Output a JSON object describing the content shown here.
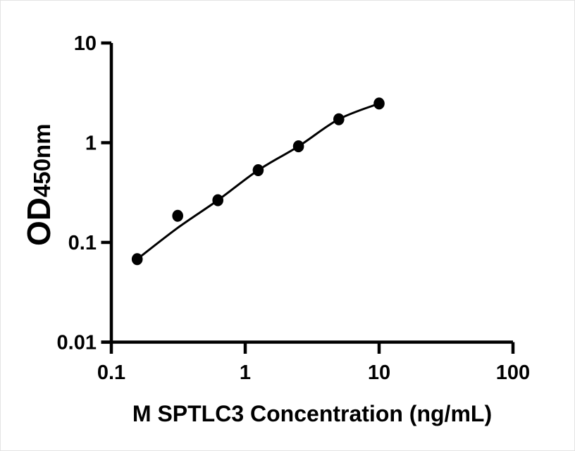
{
  "figure": {
    "background": "#ffffff",
    "ink_color": "#000000"
  },
  "chart_data": {
    "type": "scatter",
    "title": "",
    "xlabel": "M SPTLC3 Concentration (ng/mL)",
    "ylabel": "OD",
    "ylabel_subscript": "450nm",
    "x_scale": "log",
    "y_scale": "log",
    "xlim": [
      0.1,
      100
    ],
    "ylim": [
      0.01,
      10
    ],
    "grid": false,
    "legend": null,
    "x_ticks": [
      {
        "value": 0.1,
        "label": "0.1"
      },
      {
        "value": 1,
        "label": "1"
      },
      {
        "value": 10,
        "label": "10"
      },
      {
        "value": 100,
        "label": "100"
      }
    ],
    "y_ticks": [
      {
        "value": 10,
        "label": "10"
      },
      {
        "value": 1,
        "label": "1"
      },
      {
        "value": 0.1,
        "label": "0.1"
      },
      {
        "value": 0.01,
        "label": "0.01"
      }
    ],
    "series": [
      {
        "name": "standard-points",
        "marker": "filled-circle",
        "color": "#000000",
        "x": [
          0.156,
          0.313,
          0.625,
          1.25,
          2.5,
          5,
          10
        ],
        "y": [
          0.068,
          0.185,
          0.265,
          0.53,
          0.92,
          1.72,
          2.47
        ]
      }
    ],
    "fit_curve": {
      "name": "fitted-standard-curve",
      "color": "#000000",
      "x": [
        0.156,
        0.313,
        0.625,
        1.25,
        2.5,
        5,
        10
      ],
      "y": [
        0.068,
        0.14,
        0.265,
        0.53,
        0.92,
        1.72,
        2.47
      ]
    }
  }
}
